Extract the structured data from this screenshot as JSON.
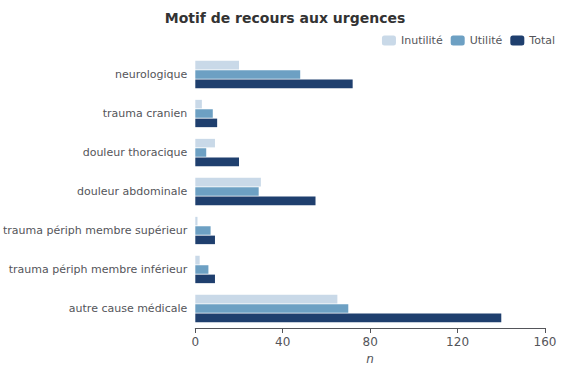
{
  "chart_data": {
    "type": "bar",
    "orientation": "horizontal",
    "title": "Motif de recours aux urgences",
    "xlabel": "n",
    "categories": [
      "neurologique",
      "trauma cranien",
      "douleur thoracique",
      "douleur abdominale",
      "trauma périph membre supérieur",
      "trauma périph membre inférieur",
      "autre cause médicale"
    ],
    "series": [
      {
        "name": "Inutilité",
        "color": "#c9d9e8",
        "values": [
          20,
          3,
          9,
          30,
          1,
          2,
          65
        ]
      },
      {
        "name": "Utilité",
        "color": "#6da0c3",
        "values": [
          48,
          8,
          5,
          29,
          7,
          6,
          70
        ]
      },
      {
        "name": "Total",
        "color": "#1f3f6e",
        "values": [
          72,
          10,
          20,
          55,
          9,
          9,
          140
        ]
      }
    ],
    "xlim": [
      0,
      160
    ],
    "xticks": [
      0,
      40,
      80,
      120,
      160
    ],
    "grid": false,
    "legend": "upper right"
  }
}
